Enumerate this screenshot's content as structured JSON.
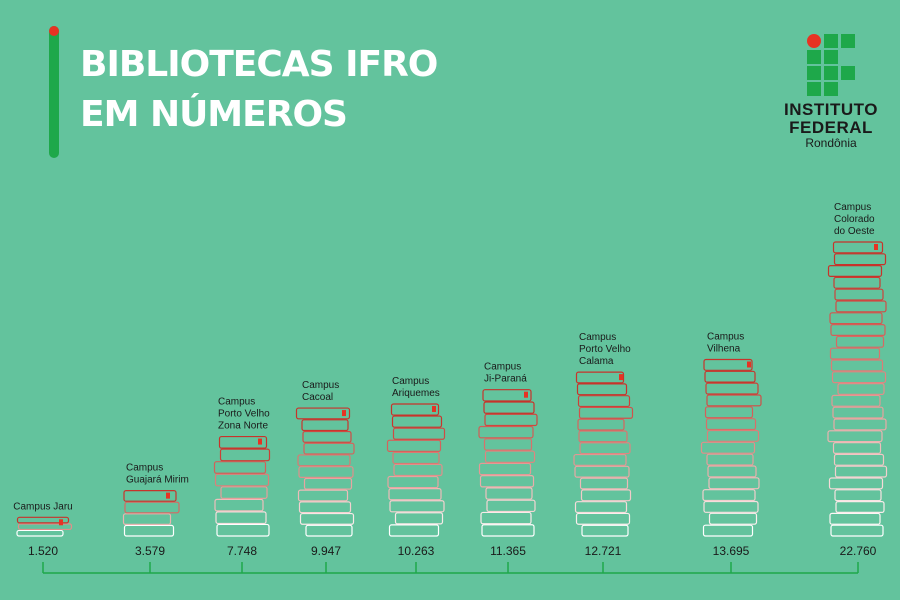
{
  "header": {
    "title_line1": "BIBLIOTECAS IFRO",
    "title_line2": "EM NÚMEROS"
  },
  "logo": {
    "line1": "INSTITUTO",
    "line2": "FEDERAL",
    "line3": "Rondônia"
  },
  "colors": {
    "background": "#63c39d",
    "green": "#1ea84a",
    "red": "#e63323",
    "book_white": "#ffffff",
    "book_red": "#c8332a"
  },
  "chart_data": {
    "type": "bar",
    "categories": [
      [
        "Campus Jaru"
      ],
      [
        "Campus",
        "Guajará Mirim"
      ],
      [
        "Campus",
        "Porto Velho",
        "Zona Norte"
      ],
      [
        "Campus",
        "Cacoal"
      ],
      [
        "Campus",
        "Ariquemes"
      ],
      [
        "Campus",
        "Ji-Paraná"
      ],
      [
        "Campus",
        "Porto Velho",
        "Calama"
      ],
      [
        "Campus",
        "Vilhena"
      ],
      [
        "Campus",
        "Colorado",
        "do Oeste"
      ]
    ],
    "values": [
      1520,
      3579,
      7748,
      9947,
      10263,
      11365,
      12721,
      13695,
      22760
    ],
    "value_labels": [
      "1.520",
      "3.579",
      "7.748",
      "9.947",
      "10.263",
      "11.365",
      "12.721",
      "13.695",
      "22.760"
    ],
    "title": "BIBLIOTECAS IFRO EM NÚMEROS"
  }
}
